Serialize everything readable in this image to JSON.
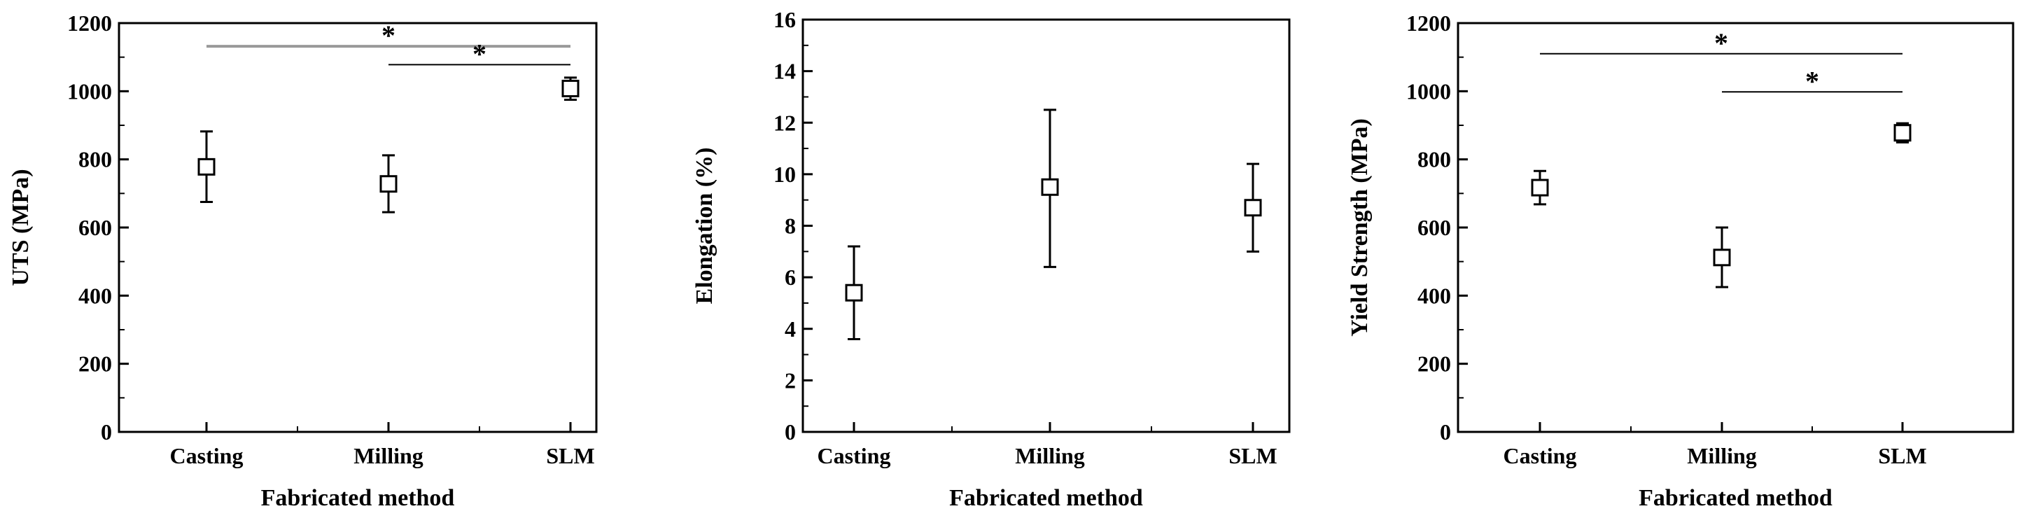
{
  "chart_data": [
    {
      "type": "scatter",
      "xlabel": "Fabricated method",
      "ylabel": "UTS (MPa)",
      "categories": [
        "Casting",
        "Milling",
        "SLM"
      ],
      "values": [
        778,
        728,
        1008
      ],
      "errors_low": [
        675,
        645,
        975
      ],
      "errors_high": [
        882,
        812,
        1040
      ],
      "ylim": [
        0,
        1200
      ],
      "yticks": [
        0,
        200,
        400,
        600,
        800,
        1000,
        1200
      ],
      "significance": [
        {
          "from": "Casting",
          "to": "SLM",
          "y": 1132,
          "label": "*",
          "color": "#999999"
        },
        {
          "from": "Milling",
          "to": "SLM",
          "y": 1078,
          "label": "*",
          "color": "#000000"
        }
      ]
    },
    {
      "type": "scatter",
      "xlabel": "Fabricated method",
      "ylabel": "Elongation (%)",
      "categories": [
        "Casting",
        "Milling",
        "SLM"
      ],
      "values": [
        5.4,
        9.5,
        8.7
      ],
      "errors_low": [
        3.6,
        6.4,
        7.0
      ],
      "errors_high": [
        7.2,
        12.5,
        10.4
      ],
      "ylim": [
        0,
        16
      ],
      "yticks": [
        0,
        2,
        4,
        6,
        8,
        10,
        12,
        14,
        16
      ],
      "significance": []
    },
    {
      "type": "scatter",
      "xlabel": "Fabricated method",
      "ylabel": "Yield Strength (MPa)",
      "categories": [
        "Casting",
        "Milling",
        "SLM"
      ],
      "values": [
        717,
        512,
        878
      ],
      "errors_low": [
        668,
        425,
        850
      ],
      "errors_high": [
        766,
        600,
        906
      ],
      "ylim": [
        0,
        1200
      ],
      "yticks": [
        0,
        200,
        400,
        600,
        800,
        1000,
        1200
      ],
      "significance": [
        {
          "from": "Casting",
          "to": "SLM",
          "y": 1110,
          "label": "*",
          "color": "#000000"
        },
        {
          "from": "Milling",
          "to": "SLM",
          "y": 998,
          "label": "*",
          "color": "#000000"
        }
      ]
    }
  ]
}
